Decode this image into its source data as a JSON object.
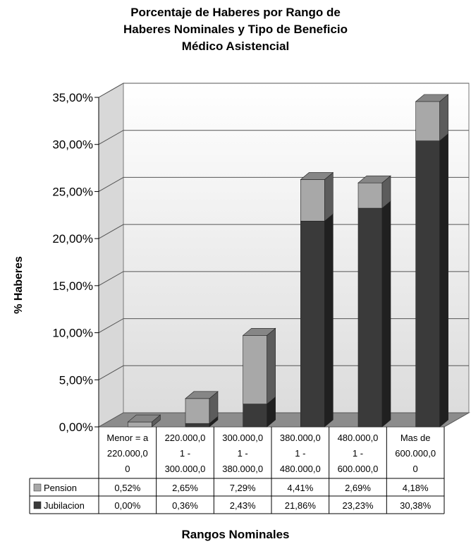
{
  "chart_data": {
    "type": "bar",
    "stacked": true,
    "three_d": true,
    "title": [
      "Porcentaje de Haberes por Rango de",
      "Haberes Nominales y Tipo de Beneficio",
      "Médico Asistencial"
    ],
    "xlabel": "Rangos Nominales",
    "ylabel": "% Haberes",
    "ylim": [
      0,
      35
    ],
    "yticks": [
      "0,00%",
      "5,00%",
      "10,00%",
      "15,00%",
      "20,00%",
      "25,00%",
      "30,00%",
      "35,00%"
    ],
    "ytick_values": [
      0,
      5,
      10,
      15,
      20,
      25,
      30,
      35
    ],
    "grid": true,
    "categories": [
      [
        "Menor = a",
        "220.000,0",
        "0"
      ],
      [
        "220.000,0",
        "1 -",
        "300.000,0"
      ],
      [
        "300.000,0",
        "1 -",
        "380.000,0"
      ],
      [
        "380.000,0",
        "1 -",
        "480.000,0"
      ],
      [
        "480.000,0",
        "1 -",
        "600.000,0"
      ],
      [
        "Mas de",
        "600.000,0",
        "0"
      ]
    ],
    "series": [
      {
        "name": "Jubilacion",
        "values": [
          0.0,
          0.36,
          2.43,
          21.86,
          23.23,
          30.38
        ],
        "labels": [
          "0,00%",
          "0,36%",
          "2,43%",
          "21,86%",
          "23,23%",
          "30,38%"
        ],
        "color": "#3a3a3a"
      },
      {
        "name": "Pension",
        "values": [
          0.52,
          2.65,
          7.29,
          4.41,
          2.69,
          4.18
        ],
        "labels": [
          "0,52%",
          "2,65%",
          "7,29%",
          "4,41%",
          "2,69%",
          "4,18%"
        ],
        "color": "#a8a8a8"
      }
    ],
    "table_row_order": [
      "Pension",
      "Jubilacion"
    ]
  }
}
